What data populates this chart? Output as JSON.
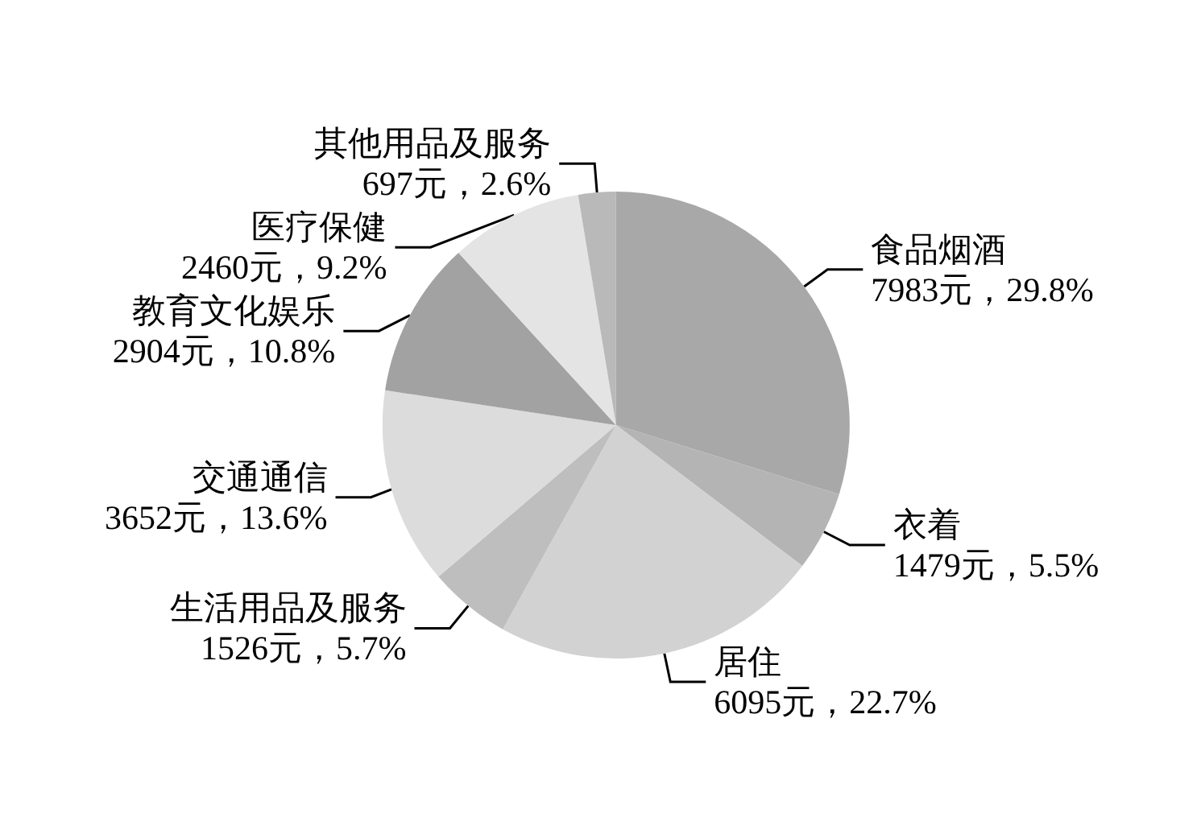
{
  "chart_data": {
    "type": "pie",
    "categories": [
      "食品烟酒",
      "衣着",
      "居住",
      "生活用品及服务",
      "交通通信",
      "教育文化娱乐",
      "医疗保健",
      "其他用品及服务"
    ],
    "values": [
      7983,
      1479,
      6095,
      1526,
      3652,
      2904,
      2460,
      697
    ],
    "value_labels": [
      "7983元，29.8%",
      "1479元，5.5%",
      "6095元，22.7%",
      "1526元，5.7%",
      "3652元，13.6%",
      "2904元，10.8%",
      "2460元，9.2%",
      "697元，2.6%"
    ],
    "colors": [
      "#a8a8a8",
      "#b4b4b4",
      "#d2d2d2",
      "#bebebe",
      "#dcdcdc",
      "#a2a2a2",
      "#e4e4e4",
      "#b9b9b9"
    ],
    "legend": false
  }
}
